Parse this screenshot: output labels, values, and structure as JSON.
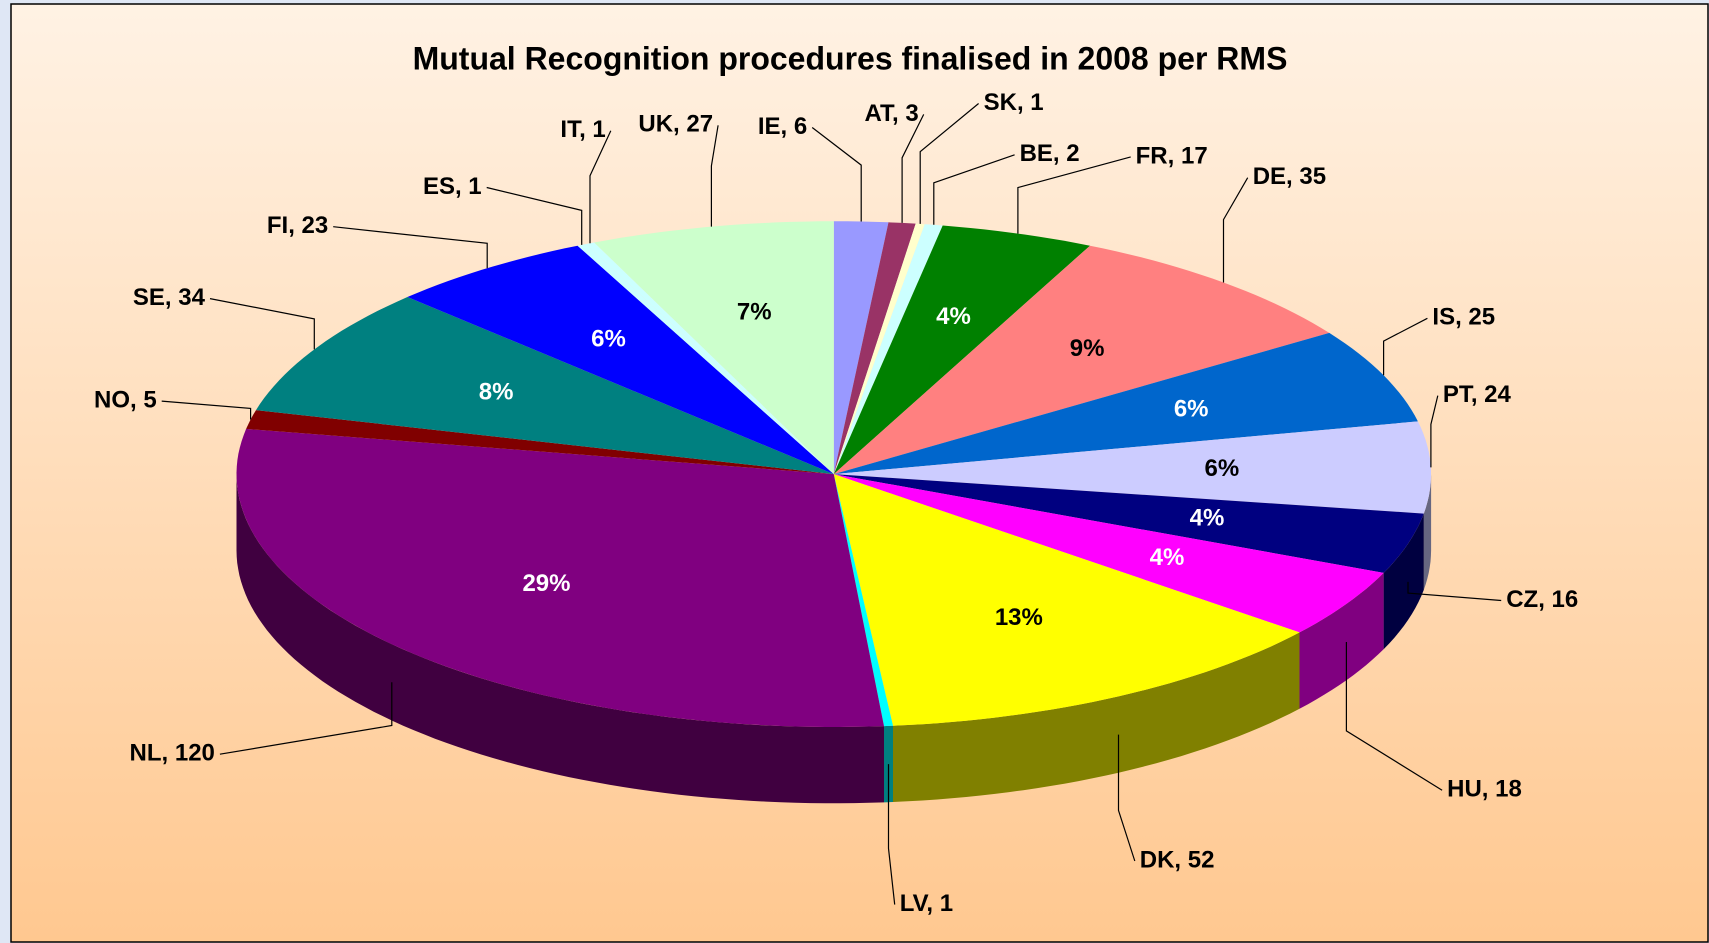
{
  "chart_data": {
    "type": "pie3d",
    "title": "Mutual Recognition procedures finalised in 2008 per RMS",
    "categories": [
      "IE",
      "AT",
      "SK",
      "BE",
      "FR",
      "DE",
      "IS",
      "PT",
      "CZ",
      "HU",
      "DK",
      "LV",
      "NL",
      "NO",
      "SE",
      "FI",
      "ES",
      "IT",
      "UK"
    ],
    "values": [
      6,
      3,
      1,
      2,
      17,
      35,
      25,
      24,
      16,
      18,
      52,
      1,
      120,
      5,
      34,
      23,
      1,
      1,
      27
    ],
    "value_labels": [
      "IE, 6",
      "AT, 3",
      "SK, 1",
      "BE, 2",
      "FR, 17",
      "DE, 35",
      "IS, 25",
      "PT, 24",
      "CZ, 16",
      "HU, 18",
      "DK, 52",
      "LV, 1",
      "NL, 120",
      "NO, 5",
      "SE, 34",
      "FI, 23",
      "ES, 1",
      "IT, 1",
      "UK, 27"
    ],
    "percent_labels": [
      null,
      null,
      null,
      null,
      "4%",
      "9%",
      "6%",
      "6%",
      "4%",
      "4%",
      "13%",
      null,
      "29%",
      null,
      "8%",
      "6%",
      null,
      null,
      "7%"
    ],
    "colors": [
      "#9999ff",
      "#993366",
      "#ffffcc",
      "#ccffff",
      "#008000",
      "#ff8080",
      "#0066cc",
      "#ccccff",
      "#000080",
      "#ff00ff",
      "#ffff00",
      "#00ffff",
      "#800080",
      "#800000",
      "#008080",
      "#0000ff",
      "#ccffff",
      "#ccffff",
      "#ccffcc"
    ]
  }
}
